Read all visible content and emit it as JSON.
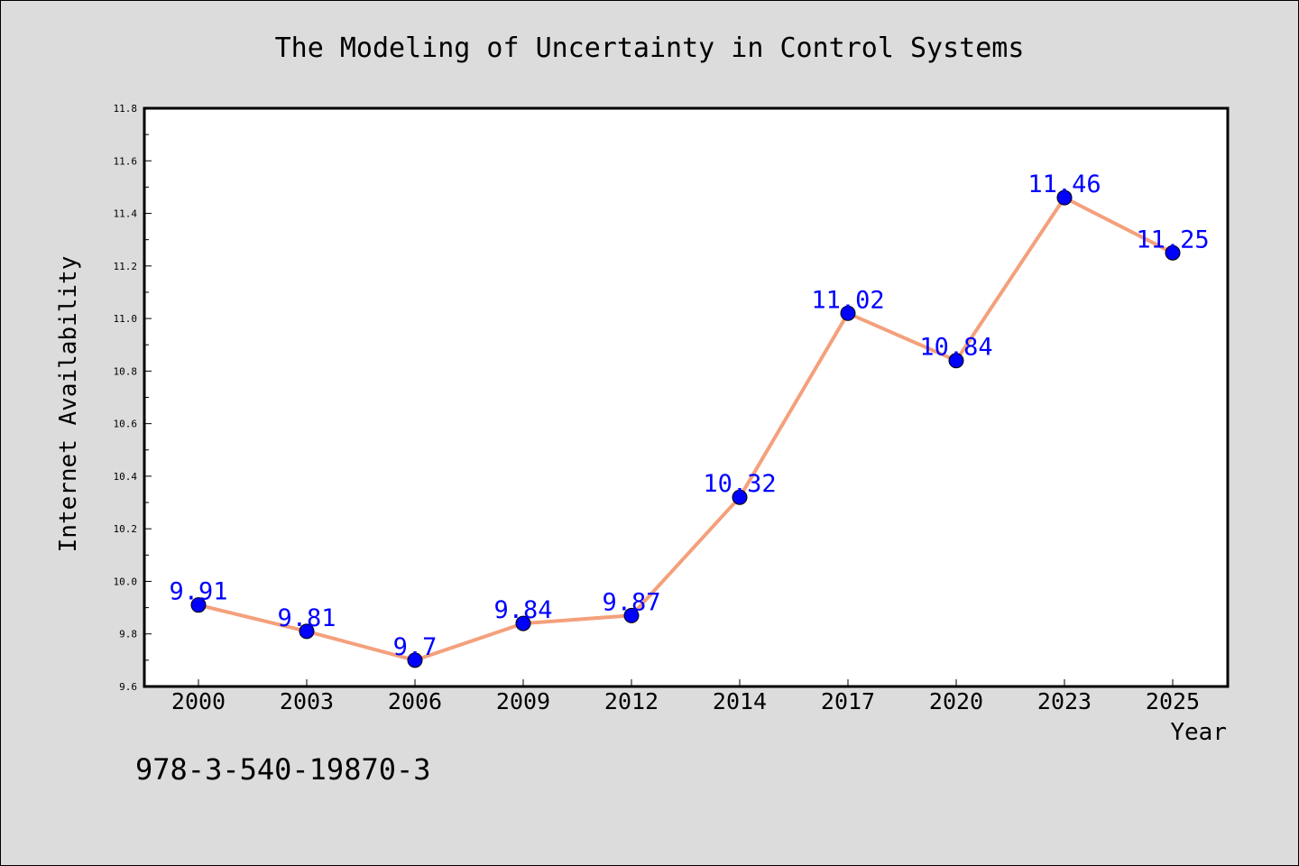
{
  "chart_data": {
    "type": "line",
    "title": "The Modeling of Uncertainty in Control Systems",
    "xlabel": "Year",
    "ylabel": "Internet Availability",
    "categories": [
      "2000",
      "2003",
      "2006",
      "2009",
      "2012",
      "2014",
      "2017",
      "2020",
      "2023",
      "2025"
    ],
    "series": [
      {
        "values": [
          9.91,
          9.81,
          9.7,
          9.84,
          9.87,
          10.32,
          11.02,
          10.84,
          11.46,
          11.25
        ],
        "data_labels": [
          "9.91",
          "9.81",
          "9.7",
          "9.84",
          "9.87",
          "10.32",
          "11.02",
          "10.84",
          "11.46",
          "11.25"
        ]
      }
    ],
    "ylim": [
      9.6,
      11.8
    ],
    "yticks": [
      "9.6",
      "9.8",
      "10.0",
      "10.2",
      "10.4",
      "10.6",
      "10.8",
      "11.0",
      "11.2",
      "11.4",
      "11.6",
      "11.8"
    ],
    "grid": false,
    "legend": "none",
    "line_color": "#f4a07c",
    "marker_color": "#0000ff",
    "label_color": "#0000ff"
  },
  "footer": {
    "isbn": "978-3-540-19870-3"
  }
}
